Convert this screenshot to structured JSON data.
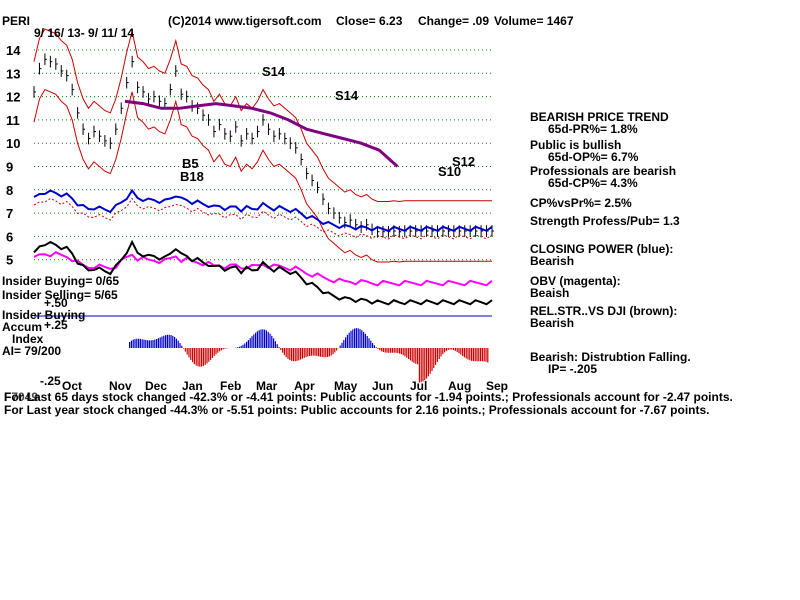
{
  "header": {
    "ticker": "PERI",
    "copyright": "(C)2014 www.tigersoft.com",
    "close": "Close=  6.23",
    "change": "Change= .09",
    "volume": "Volume= 1467",
    "date_range": "9/ 16/ 13- 9/ 11/ 14"
  },
  "indicators": {
    "insider_buying": "Insider Buying= 0/65",
    "insider_selling": "Insider Selling= 5/65",
    "insider_buying_title": "Insider Buying",
    "accum_label_1": "Accum",
    "accum_label_2": "Index",
    "ai": "AI= 79/200",
    "accum_top": "+.50",
    "accum_plus": "+.25",
    "accum_minus": "-.25"
  },
  "right_panel": {
    "trend_title": "BEARISH PRICE TREND",
    "pr": "65d-PR%= 1.8%",
    "public": "Public is bullish",
    "op": "65d-OP%= 6.7%",
    "pros": "Professionals are bearish",
    "cp": "65d-CP%= 4.3%",
    "cpvspr": "CP%vsPr%=  2.5%",
    "strength": "Strength Profess/Pub= 1.3",
    "closing_title": "CLOSING POWER (blue):",
    "closing_val": "Bearish",
    "obv_title": "OBV (magenta):",
    "obv_val": "Beaish",
    "rel_title": "REL.STR..VS DJI (brown):",
    "rel_val": "Bearish",
    "dist": "Bearish:  Distrubtion Falling.",
    "ip": "IP= -.205"
  },
  "footer": {
    "line1_prefix": "For Last 65 days stock changed -42.3% or -4.41 points:  Public accounts for -1.94 points.;  Professionals account for -2.47 points.",
    "line1_overlap": "F7049",
    "line2": "For Last year stock changed -44.3% or -5.51 points:  Public accounts for  2.16 points.;  Professionals account for -7.67 points."
  },
  "signals": [
    {
      "label": "S14"
    },
    {
      "label": "S14"
    },
    {
      "label": "B5"
    },
    {
      "label": "B18"
    },
    {
      "label": "S12"
    },
    {
      "label": "S10"
    }
  ],
  "colors": {
    "price": "#000000",
    "bands": "#cc0000",
    "ma": "#800080",
    "closing_power": "#0000cc",
    "obv": "#ff00ff",
    "rel_str": "#000000",
    "grid": "#008000",
    "accum_pos": "#0000cc",
    "accum_neg": "#cc0000",
    "zero_line": "#0000cc"
  },
  "chart_data": {
    "type": "line",
    "title": "PERI",
    "xlabel": "",
    "ylabel": "",
    "ylim": [
      5,
      14
    ],
    "y_ticks": [
      14,
      13,
      12,
      11,
      10,
      9,
      8,
      7,
      6,
      5
    ],
    "month_labels": [
      "Oct",
      "Nov",
      "Dec",
      "Jan",
      "Feb",
      "Mar",
      "Apr",
      "May",
      "Jun",
      "Jul",
      "Aug",
      "Sep"
    ],
    "grid": true,
    "price_series": {
      "name": "Price",
      "x": [
        0,
        3,
        6,
        9,
        12,
        15,
        18,
        21,
        24,
        27,
        30,
        33,
        36,
        39,
        42,
        45,
        48,
        51,
        54,
        57,
        60,
        63,
        66,
        69,
        72,
        75,
        78,
        81,
        84,
        87,
        90,
        93,
        96,
        99,
        102,
        105,
        108,
        111,
        114,
        117,
        120,
        123,
        126,
        129,
        132,
        135,
        138,
        141,
        144,
        147,
        150,
        153,
        156,
        159,
        162,
        165,
        168,
        171,
        174,
        177,
        180,
        183,
        186,
        189,
        192,
        195,
        198,
        201,
        204,
        207,
        210,
        213,
        216,
        219,
        222,
        225,
        228,
        231,
        234,
        237,
        240,
        243,
        246,
        249,
        252
      ],
      "y": [
        12.2,
        13.2,
        13.6,
        13.5,
        13.4,
        13.1,
        12.9,
        12.3,
        11.3,
        10.6,
        10.2,
        10.5,
        10.3,
        10.1,
        10.0,
        10.6,
        11.5,
        12.6,
        13.5,
        12.4,
        12.2,
        11.9,
        12.0,
        11.8,
        11.7,
        12.3,
        13.1,
        12.1,
        12.0,
        11.6,
        11.5,
        11.2,
        11.0,
        10.5,
        10.8,
        10.4,
        10.3,
        10.7,
        10.1,
        10.4,
        10.2,
        10.5,
        11.0,
        10.6,
        10.3,
        10.4,
        10.2,
        10.0,
        9.8,
        9.3,
        8.7,
        8.4,
        8.1,
        7.6,
        7.2,
        7.0,
        6.8,
        6.6,
        6.7,
        6.5,
        6.4,
        6.5,
        6.3,
        6.2,
        6.2,
        6.2,
        6.23,
        6.2,
        6.23,
        6.23,
        6.23,
        6.23,
        6.23,
        6.23,
        6.23,
        6.23,
        6.23,
        6.23,
        6.23,
        6.23,
        6.23,
        6.23,
        6.23,
        6.23,
        6.23
      ]
    },
    "ma_series": {
      "name": "",
      "x": [
        50,
        60,
        70,
        80,
        90,
        100,
        110,
        120,
        130,
        140,
        150,
        160,
        170,
        180,
        190,
        200
      ],
      "y": [
        11.8,
        11.7,
        11.5,
        11.5,
        11.6,
        11.7,
        11.6,
        11.5,
        11.3,
        11.0,
        10.6,
        10.4,
        10.2,
        10.0,
        9.7,
        9.0
      ]
    }
  }
}
